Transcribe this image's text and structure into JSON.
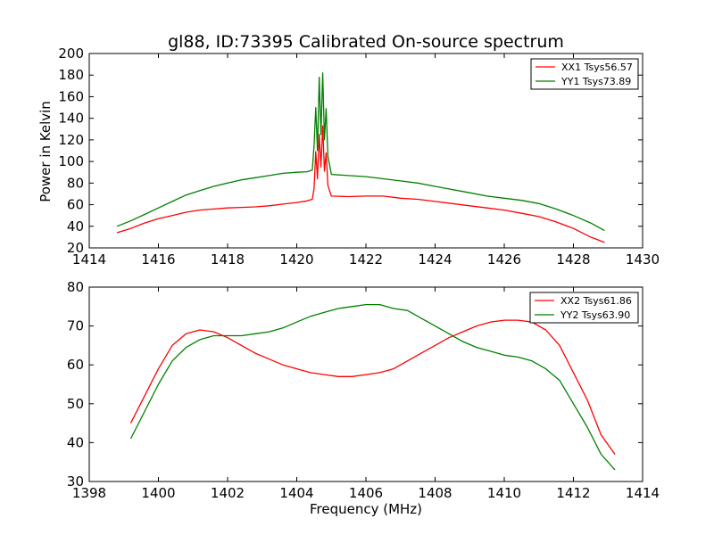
{
  "chart_data": [
    {
      "type": "line",
      "title": "gl88, ID:73395 Calibrated On-source spectrum",
      "xlabel": "",
      "ylabel": "Power in Kelvin",
      "xlim": [
        1414,
        1430
      ],
      "ylim": [
        20,
        200
      ],
      "xticks": [
        "1414",
        "1416",
        "1418",
        "1420",
        "1422",
        "1424",
        "1426",
        "1428",
        "1430"
      ],
      "yticks": [
        "20",
        "40",
        "60",
        "80",
        "100",
        "120",
        "140",
        "160",
        "180",
        "200"
      ],
      "legend_position": "top-right",
      "series": [
        {
          "name": "XX1 Tsys56.57",
          "color": "#ff0000",
          "points": [
            [
              1414.8,
              34
            ],
            [
              1415.2,
              38
            ],
            [
              1415.6,
              43
            ],
            [
              1416.0,
              47
            ],
            [
              1416.4,
              50
            ],
            [
              1416.8,
              53
            ],
            [
              1417.2,
              55
            ],
            [
              1417.6,
              56
            ],
            [
              1418.0,
              57
            ],
            [
              1418.4,
              57.5
            ],
            [
              1418.8,
              58
            ],
            [
              1419.2,
              59
            ],
            [
              1419.6,
              60.5
            ],
            [
              1420.0,
              62
            ],
            [
              1420.3,
              63.5
            ],
            [
              1420.45,
              65
            ],
            [
              1420.5,
              75
            ],
            [
              1420.55,
              109
            ],
            [
              1420.6,
              84
            ],
            [
              1420.65,
              125
            ],
            [
              1420.7,
              95
            ],
            [
              1420.75,
              133
            ],
            [
              1420.8,
              91
            ],
            [
              1420.85,
              108
            ],
            [
              1420.9,
              78
            ],
            [
              1421.0,
              68
            ],
            [
              1421.5,
              67.5
            ],
            [
              1422.0,
              68
            ],
            [
              1422.5,
              68
            ],
            [
              1423.0,
              66
            ],
            [
              1423.5,
              65
            ],
            [
              1424.0,
              63
            ],
            [
              1424.5,
              61
            ],
            [
              1425.0,
              59
            ],
            [
              1425.5,
              57
            ],
            [
              1426.0,
              55
            ],
            [
              1426.5,
              52
            ],
            [
              1427.0,
              49
            ],
            [
              1427.5,
              44
            ],
            [
              1428.0,
              38
            ],
            [
              1428.5,
              30
            ],
            [
              1428.9,
              25
            ]
          ]
        },
        {
          "name": "YY1 Tsys73.89",
          "color": "#008000",
          "points": [
            [
              1414.8,
              40
            ],
            [
              1415.2,
              45
            ],
            [
              1415.6,
              51
            ],
            [
              1416.0,
              57
            ],
            [
              1416.4,
              63
            ],
            [
              1416.8,
              69
            ],
            [
              1417.2,
              73
            ],
            [
              1417.6,
              77
            ],
            [
              1418.0,
              80
            ],
            [
              1418.4,
              83
            ],
            [
              1418.8,
              85
            ],
            [
              1419.2,
              87
            ],
            [
              1419.6,
              89
            ],
            [
              1420.0,
              90
            ],
            [
              1420.3,
              90.5
            ],
            [
              1420.45,
              92
            ],
            [
              1420.5,
              115
            ],
            [
              1420.55,
              150
            ],
            [
              1420.6,
              110
            ],
            [
              1420.65,
              178
            ],
            [
              1420.7,
              125
            ],
            [
              1420.75,
              182
            ],
            [
              1420.8,
              120
            ],
            [
              1420.85,
              149
            ],
            [
              1420.9,
              105
            ],
            [
              1421.0,
              88
            ],
            [
              1421.5,
              87
            ],
            [
              1422.0,
              86
            ],
            [
              1422.5,
              84
            ],
            [
              1423.0,
              82
            ],
            [
              1423.5,
              80
            ],
            [
              1424.0,
              77
            ],
            [
              1424.5,
              74
            ],
            [
              1425.0,
              71
            ],
            [
              1425.5,
              68
            ],
            [
              1426.0,
              66
            ],
            [
              1426.5,
              64
            ],
            [
              1427.0,
              61
            ],
            [
              1427.5,
              56
            ],
            [
              1428.0,
              50
            ],
            [
              1428.5,
              43
            ],
            [
              1428.9,
              36
            ]
          ]
        }
      ]
    },
    {
      "type": "line",
      "title": "",
      "xlabel": "Frequency (MHz)",
      "ylabel": "",
      "xlim": [
        1398,
        1414
      ],
      "ylim": [
        30,
        80
      ],
      "xticks": [
        "1398",
        "1400",
        "1402",
        "1404",
        "1406",
        "1408",
        "1410",
        "1412",
        "1414"
      ],
      "yticks": [
        "30",
        "40",
        "50",
        "60",
        "70",
        "80"
      ],
      "legend_position": "top-right",
      "series": [
        {
          "name": "XX2 Tsys61.86",
          "color": "#ff0000",
          "points": [
            [
              1399.2,
              45
            ],
            [
              1399.6,
              52
            ],
            [
              1400.0,
              59
            ],
            [
              1400.4,
              65
            ],
            [
              1400.8,
              68
            ],
            [
              1401.2,
              69
            ],
            [
              1401.6,
              68.5
            ],
            [
              1402.0,
              67
            ],
            [
              1402.4,
              65
            ],
            [
              1402.8,
              63
            ],
            [
              1403.2,
              61.5
            ],
            [
              1403.6,
              60
            ],
            [
              1404.0,
              59
            ],
            [
              1404.4,
              58
            ],
            [
              1404.8,
              57.5
            ],
            [
              1405.2,
              57
            ],
            [
              1405.6,
              57
            ],
            [
              1406.0,
              57.5
            ],
            [
              1406.4,
              58
            ],
            [
              1406.8,
              59
            ],
            [
              1407.2,
              61
            ],
            [
              1407.6,
              63
            ],
            [
              1408.0,
              65
            ],
            [
              1408.4,
              67
            ],
            [
              1408.8,
              68.5
            ],
            [
              1409.2,
              70
            ],
            [
              1409.6,
              71
            ],
            [
              1410.0,
              71.5
            ],
            [
              1410.4,
              71.5
            ],
            [
              1410.8,
              71
            ],
            [
              1411.2,
              69
            ],
            [
              1411.6,
              65
            ],
            [
              1412.0,
              58
            ],
            [
              1412.4,
              51
            ],
            [
              1412.8,
              42
            ],
            [
              1413.2,
              37
            ]
          ]
        },
        {
          "name": "YY2 Tsys63.90",
          "color": "#008000",
          "points": [
            [
              1399.2,
              41
            ],
            [
              1399.6,
              48
            ],
            [
              1400.0,
              55
            ],
            [
              1400.4,
              61
            ],
            [
              1400.8,
              64.5
            ],
            [
              1401.2,
              66.5
            ],
            [
              1401.6,
              67.5
            ],
            [
              1402.0,
              67.5
            ],
            [
              1402.4,
              67.5
            ],
            [
              1402.8,
              68
            ],
            [
              1403.2,
              68.5
            ],
            [
              1403.6,
              69.5
            ],
            [
              1404.0,
              71
            ],
            [
              1404.4,
              72.5
            ],
            [
              1404.8,
              73.5
            ],
            [
              1405.2,
              74.5
            ],
            [
              1405.6,
              75
            ],
            [
              1406.0,
              75.5
            ],
            [
              1406.4,
              75.5
            ],
            [
              1406.8,
              74.5
            ],
            [
              1407.2,
              74
            ],
            [
              1407.6,
              72
            ],
            [
              1408.0,
              70
            ],
            [
              1408.4,
              68
            ],
            [
              1408.8,
              66
            ],
            [
              1409.2,
              64.5
            ],
            [
              1409.6,
              63.5
            ],
            [
              1410.0,
              62.5
            ],
            [
              1410.4,
              62
            ],
            [
              1410.8,
              61
            ],
            [
              1411.2,
              59
            ],
            [
              1411.6,
              56
            ],
            [
              1412.0,
              50
            ],
            [
              1412.4,
              44
            ],
            [
              1412.8,
              37
            ],
            [
              1413.2,
              33
            ]
          ]
        }
      ]
    }
  ]
}
